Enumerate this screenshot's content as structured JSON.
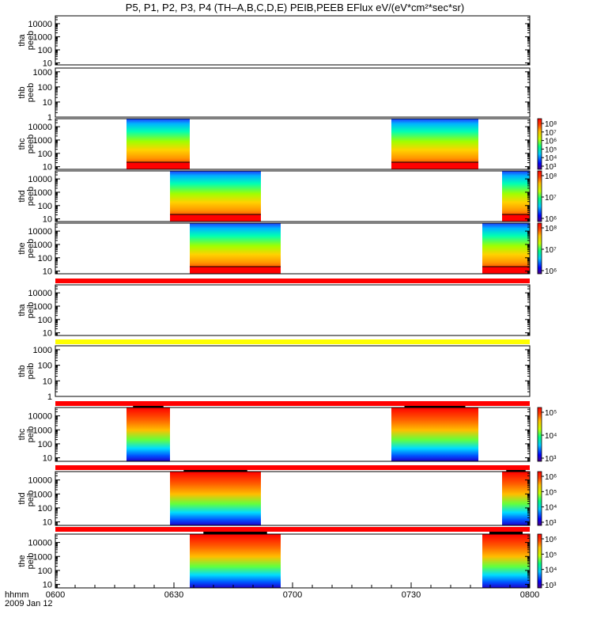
{
  "chart_data": {
    "type": "heatmap",
    "title": "P5, P1, P2, P3, P4 (TH–A,B,C,D,E) PEIB,PEEB EFlux eV/(eV*cm²*sec*sr)",
    "x_label_top": "hhmm",
    "x_label_bottom": "2009 Jan 12",
    "x_ticks": [
      "0600",
      "0630",
      "0700",
      "0730",
      "0800"
    ],
    "x_range_minutes": [
      0,
      120
    ],
    "panels": [
      {
        "label_top": "tha",
        "label_bottom": "peeb",
        "y_ticks": [
          "10000",
          "1000",
          "100",
          "10"
        ],
        "y_log_range": [
          0.85,
          4.6
        ],
        "segments": [],
        "colorbar": null
      },
      {
        "label_top": "thb",
        "label_bottom": "peeb",
        "y_ticks": [
          "1000",
          "100",
          "10",
          "1"
        ],
        "y_log_range": [
          0,
          3.25
        ],
        "segments": [],
        "colorbar": null
      },
      {
        "label_top": "thc",
        "label_bottom": "peeb",
        "y_ticks": [
          "10000",
          "1000",
          "100",
          "10"
        ],
        "y_log_range": [
          0.8,
          4.6
        ],
        "segments": [
          {
            "start_min": 18,
            "end_min": 34,
            "style": "electron"
          },
          {
            "start_min": 85,
            "end_min": 107,
            "style": "electron"
          }
        ],
        "colorbar": {
          "ticks": [
            "10⁸",
            "10⁷",
            "10⁶",
            "10⁵",
            "10⁴",
            "10³"
          ]
        }
      },
      {
        "label_top": "thd",
        "label_bottom": "peeb",
        "y_ticks": [
          "10000",
          "1000",
          "100",
          "10"
        ],
        "y_log_range": [
          0.8,
          4.6
        ],
        "segments": [
          {
            "start_min": 29,
            "end_min": 52,
            "style": "electron"
          },
          {
            "start_min": 113,
            "end_min": 120,
            "style": "electron"
          }
        ],
        "colorbar": {
          "ticks": [
            "10⁸",
            "10⁷",
            "10⁶"
          ]
        }
      },
      {
        "label_top": "the",
        "label_bottom": "peeb",
        "y_ticks": [
          "10000",
          "1000",
          "100",
          "10"
        ],
        "y_log_range": [
          0.8,
          4.6
        ],
        "segments": [
          {
            "start_min": 34,
            "end_min": 57,
            "style": "electron"
          },
          {
            "start_min": 108,
            "end_min": 120,
            "style": "electron"
          }
        ],
        "colorbar": {
          "ticks": [
            "10⁸",
            "10⁷",
            "10⁶"
          ]
        }
      },
      {
        "label_top": "tha",
        "label_bottom": "peib",
        "y_ticks": [
          "10000",
          "1000",
          "100",
          "10"
        ],
        "y_log_range": [
          0.8,
          4.6
        ],
        "segments": [],
        "colorbar": null
      },
      {
        "label_top": "thb",
        "label_bottom": "peib",
        "y_ticks": [
          "1000",
          "100",
          "10",
          "1"
        ],
        "y_log_range": [
          0,
          3.25
        ],
        "segments": [],
        "colorbar": null
      },
      {
        "label_top": "thc",
        "label_bottom": "peib",
        "y_ticks": [
          "10000",
          "1000",
          "100",
          "10"
        ],
        "y_log_range": [
          0.75,
          4.6
        ],
        "segments": [
          {
            "start_min": 18,
            "end_min": 29,
            "style": "ion"
          },
          {
            "start_min": 85,
            "end_min": 107,
            "style": "ion"
          }
        ],
        "colorbar": {
          "ticks": [
            "10⁵",
            "10⁴",
            "10³"
          ]
        }
      },
      {
        "label_top": "thd",
        "label_bottom": "peib",
        "y_ticks": [
          "10000",
          "1000",
          "100",
          "10"
        ],
        "y_log_range": [
          0.75,
          4.6
        ],
        "segments": [
          {
            "start_min": 29,
            "end_min": 52,
            "style": "ion"
          },
          {
            "start_min": 113,
            "end_min": 120,
            "style": "ion"
          }
        ],
        "colorbar": {
          "ticks": [
            "10⁶",
            "10⁵",
            "10⁴",
            "10³"
          ]
        }
      },
      {
        "label_top": "the",
        "label_bottom": "peib",
        "y_ticks": [
          "10000",
          "1000",
          "100",
          "10"
        ],
        "y_log_range": [
          0.75,
          4.6
        ],
        "segments": [
          {
            "start_min": 34,
            "end_min": 57,
            "style": "ion"
          },
          {
            "start_min": 108,
            "end_min": 120,
            "style": "ion"
          }
        ],
        "colorbar": {
          "ticks": [
            "10⁶",
            "10⁵",
            "10⁴",
            "10³"
          ]
        }
      }
    ],
    "flag_bars": [
      {
        "after_panel": 4,
        "color": "#ff0000"
      },
      {
        "after_panel": 5,
        "color": "#ffff00"
      },
      {
        "after_panel": 6,
        "color": "#ff0000"
      },
      {
        "after_panel": 7,
        "color": "#ff0000"
      },
      {
        "after_panel": 8,
        "color": "#ff0000"
      }
    ]
  }
}
